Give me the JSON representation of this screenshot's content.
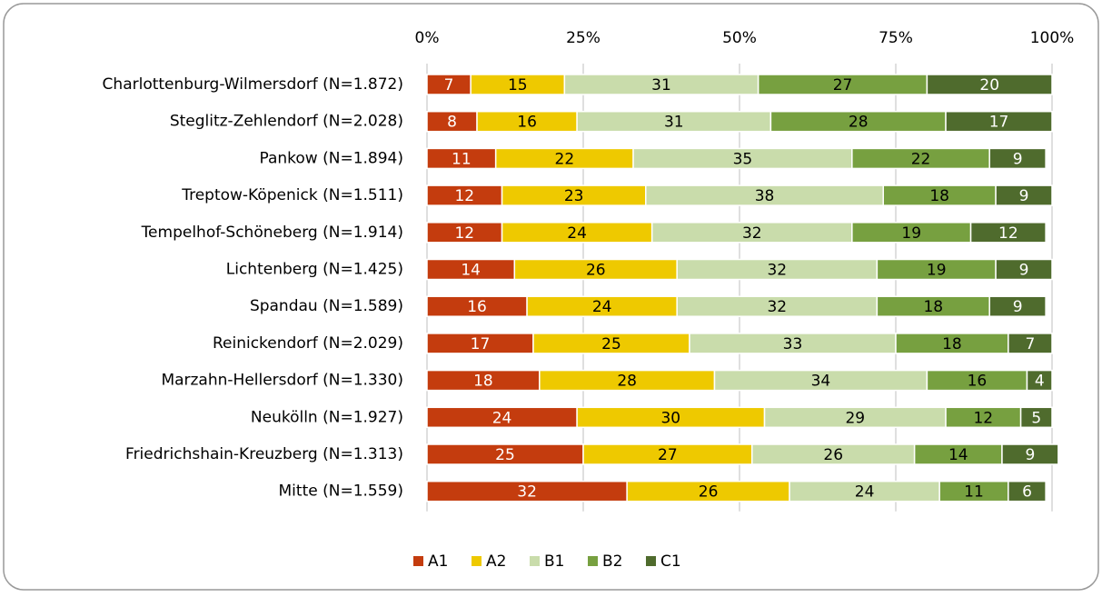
{
  "chart_data": {
    "type": "stacked-bar-horizontal",
    "categories": [
      "Charlottenburg-Wilmersdorf (N=1.872)",
      "Steglitz-Zehlendorf (N=2.028)",
      "Pankow (N=1.894)",
      "Treptow-Köpenick (N=1.511)",
      "Tempelhof-Schöneberg (N=1.914)",
      "Lichtenberg (N=1.425)",
      "Spandau (N=1.589)",
      "Reinickendorf (N=2.029)",
      "Marzahn-Hellersdorf (N=1.330)",
      "Neukölln (N=1.927)",
      "Friedrichshain-Kreuzberg (N=1.313)",
      "Mitte (N=1.559)"
    ],
    "series": [
      {
        "name": "A1",
        "color": "#c43c0e",
        "values": [
          7,
          8,
          11,
          12,
          12,
          14,
          16,
          17,
          18,
          24,
          25,
          32
        ]
      },
      {
        "name": "A2",
        "color": "#eec900",
        "values": [
          15,
          16,
          22,
          23,
          24,
          26,
          24,
          25,
          28,
          30,
          27,
          26
        ]
      },
      {
        "name": "B1",
        "color": "#c9dcab",
        "values": [
          31,
          31,
          35,
          38,
          32,
          32,
          32,
          33,
          34,
          29,
          26,
          24
        ]
      },
      {
        "name": "B2",
        "color": "#77a040",
        "values": [
          27,
          28,
          22,
          18,
          19,
          19,
          18,
          18,
          16,
          12,
          14,
          11
        ]
      },
      {
        "name": "C1",
        "color": "#4f6b2d",
        "values": [
          20,
          17,
          9,
          9,
          12,
          9,
          9,
          7,
          4,
          5,
          9,
          6
        ]
      }
    ],
    "xlim": [
      0,
      100
    ],
    "xticks": [
      {
        "value": 0,
        "label": "0%"
      },
      {
        "value": 25,
        "label": "25%"
      },
      {
        "value": 50,
        "label": "50%"
      },
      {
        "value": 75,
        "label": "75%"
      },
      {
        "value": 100,
        "label": "100%"
      }
    ],
    "grid": true,
    "legend": "bottom"
  }
}
